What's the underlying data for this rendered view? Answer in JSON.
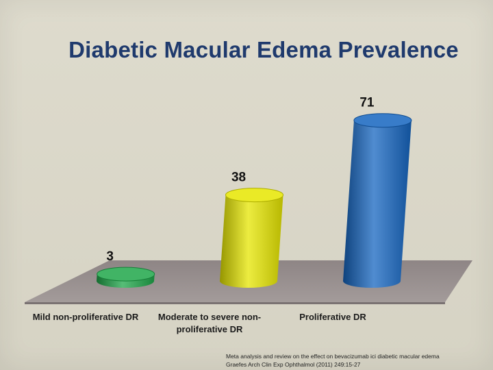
{
  "chart_data": {
    "type": "bar",
    "title": "Diabetic Macular Edema Prevalence",
    "categories": [
      [
        "Mild non-proliferative DR"
      ],
      [
        "Moderate to severe non-",
        "proliferative DR"
      ],
      [
        "Proliferative DR"
      ]
    ],
    "values": [
      3,
      38,
      71
    ],
    "data_labels": [
      "3",
      "38",
      "71"
    ],
    "colors": [
      "#1fa74a",
      "#e6e600",
      "#1565c0"
    ],
    "ylim": [
      0,
      80
    ],
    "grid": false,
    "legend": "none"
  },
  "citation": {
    "line1": "Meta analysis  and review on the effect on bevacizumab ici diabetic macular edema",
    "line2": "Graefes Arch Clin Exp Ophthalmol (2011) 249:15-27"
  }
}
